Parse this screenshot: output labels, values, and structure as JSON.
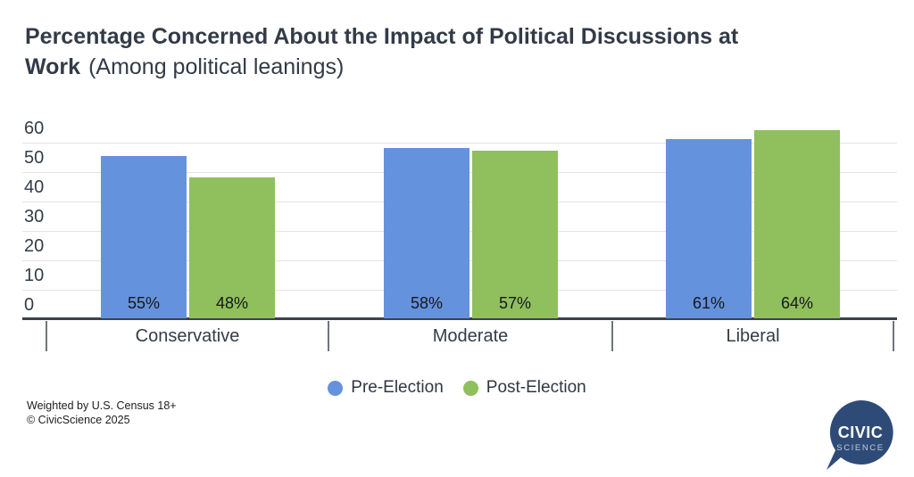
{
  "title": {
    "line1": "Percentage Concerned About the Impact of Political Discussions at",
    "line2_bold": "Work",
    "line2_rest": "(Among political leanings)"
  },
  "chart_data": {
    "type": "bar",
    "categories": [
      "Conservative",
      "Moderate",
      "Liberal"
    ],
    "series": [
      {
        "name": "Pre-Election",
        "color": "#6592DC",
        "values": [
          55,
          58,
          61
        ],
        "value_labels": [
          "55%",
          "58%",
          "61%"
        ]
      },
      {
        "name": "Post-Election",
        "color": "#90BF5D",
        "values": [
          48,
          57,
          64
        ],
        "value_labels": [
          "48%",
          "57%",
          "64%"
        ]
      }
    ],
    "xlabel": "",
    "ylabel": "",
    "ylim": [
      0,
      60
    ],
    "yticks": [
      0,
      10,
      20,
      30,
      40,
      50,
      60
    ],
    "grid": true,
    "legend_position": "bottom"
  },
  "legend": {
    "items": [
      {
        "label": "Pre-Election",
        "color": "#6592DC"
      },
      {
        "label": "Post-Election",
        "color": "#90BF5D"
      }
    ]
  },
  "footer": {
    "line1": "Weighted by U.S. Census 18+",
    "line2": "© CivicScience 2025"
  },
  "logo": {
    "top": "CIVIC",
    "bottom": "SCIENCE",
    "bubble_color": "#2E4B78",
    "top_color": "#ffffff",
    "bottom_color": "#c2cbda"
  }
}
